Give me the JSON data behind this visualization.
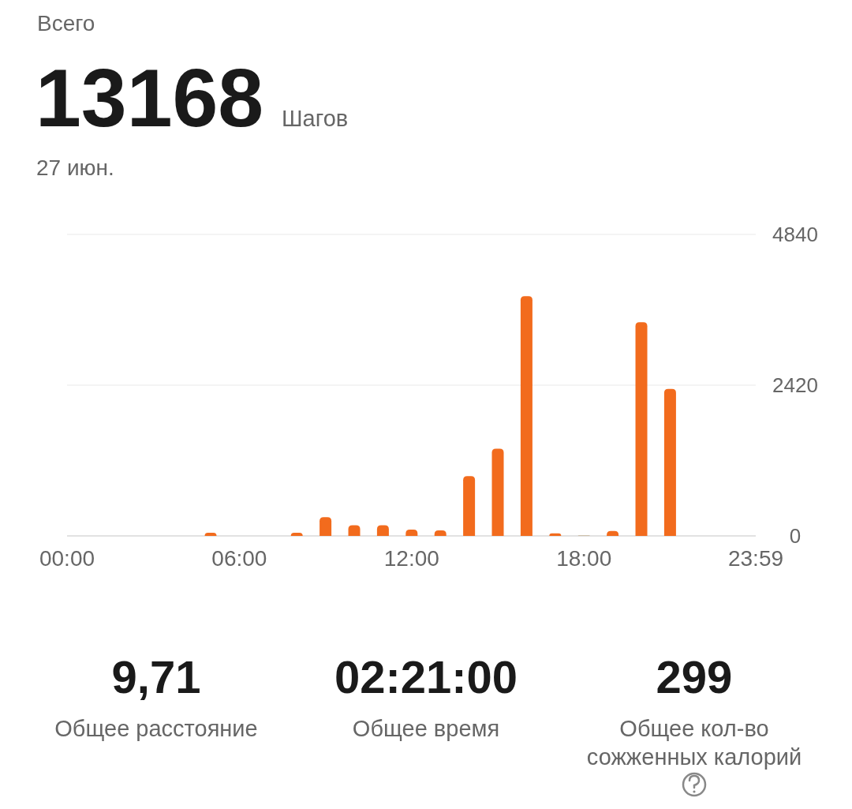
{
  "chart_data": {
    "type": "bar",
    "title": "Всего",
    "subtitle": "27 июн.",
    "annotations": [
      "13168",
      "Шагов",
      "9,71",
      "Общее расстояние",
      "02:21:00",
      "Общее время",
      "299",
      "Общее кол-во сожженных калорий"
    ],
    "x": [
      5,
      8,
      9,
      10,
      11,
      12,
      13,
      14,
      15,
      16,
      17,
      18,
      19,
      20,
      21
    ],
    "values": [
      50,
      50,
      300,
      170,
      170,
      100,
      90,
      960,
      1400,
      3850,
      40,
      10,
      80,
      3430,
      2360
    ],
    "colors": [
      "#f26b1d",
      "#f26b1d",
      "#f26b1d",
      "#f26b1d",
      "#f26b1d",
      "#f26b1d",
      "#f26b1d",
      "#f26b1d",
      "#f26b1d",
      "#f26b1d",
      "#f26b1d",
      "#c8b79a",
      "#f26b1d",
      "#f26b1d",
      "#f26b1d"
    ],
    "xlim": [
      0,
      23.983
    ],
    "xticks": [
      {
        "value": 0,
        "label": "00:00"
      },
      {
        "value": 6,
        "label": "06:00"
      },
      {
        "value": 12,
        "label": "12:00"
      },
      {
        "value": 18,
        "label": "18:00"
      },
      {
        "value": 23.983,
        "label": "23:59"
      }
    ],
    "ylim": [
      0,
      4840
    ],
    "yticks": [
      0,
      2420,
      4840
    ],
    "grid": "y"
  }
}
